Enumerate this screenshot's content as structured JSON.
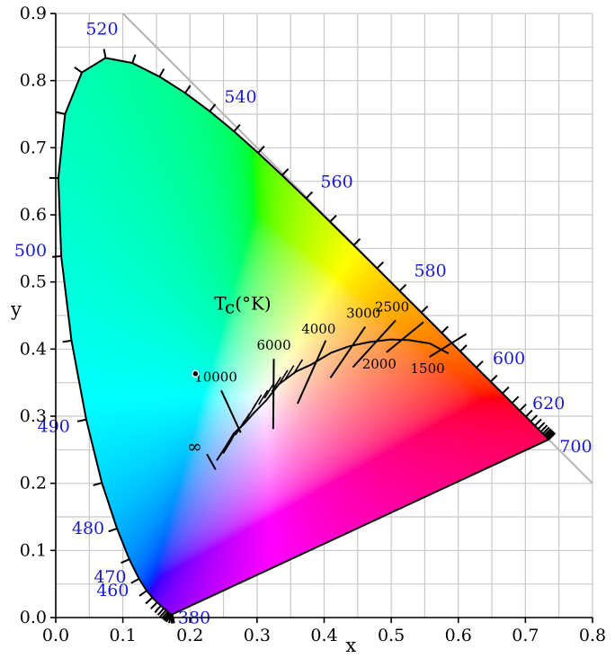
{
  "chart_data": {
    "type": "chromaticity-diagram",
    "xlabel": "x",
    "ylabel": "y",
    "xlim": [
      0.0,
      0.8
    ],
    "ylim": [
      0.0,
      0.9
    ],
    "grid": true,
    "x_ticks": [
      "0.0",
      "0.1",
      "0.2",
      "0.3",
      "0.4",
      "0.5",
      "0.6",
      "0.7",
      "0.8"
    ],
    "y_ticks": [
      "0.0",
      "0.1",
      "0.2",
      "0.3",
      "0.4",
      "0.5",
      "0.6",
      "0.7",
      "0.8",
      "0.9"
    ],
    "spectral_locus": [
      [
        0.1741,
        0.005
      ],
      [
        0.1738,
        0.0049
      ],
      [
        0.1736,
        0.0049
      ],
      [
        0.1733,
        0.0048
      ],
      [
        0.173,
        0.0048
      ],
      [
        0.1726,
        0.0048
      ],
      [
        0.1721,
        0.0048
      ],
      [
        0.1714,
        0.0051
      ],
      [
        0.1703,
        0.0058
      ],
      [
        0.1689,
        0.0069
      ],
      [
        0.1669,
        0.0086
      ],
      [
        0.1644,
        0.0109
      ],
      [
        0.1611,
        0.0138
      ],
      [
        0.1566,
        0.0177
      ],
      [
        0.151,
        0.0227
      ],
      [
        0.144,
        0.0297
      ],
      [
        0.1355,
        0.0399
      ],
      [
        0.1241,
        0.0578
      ],
      [
        0.1096,
        0.0868
      ],
      [
        0.0913,
        0.1327
      ],
      [
        0.0687,
        0.2007
      ],
      [
        0.0454,
        0.295
      ],
      [
        0.0235,
        0.4127
      ],
      [
        0.0082,
        0.5384
      ],
      [
        0.0039,
        0.6548
      ],
      [
        0.0139,
        0.7502
      ],
      [
        0.0389,
        0.812
      ],
      [
        0.0743,
        0.8338
      ],
      [
        0.1142,
        0.8262
      ],
      [
        0.1547,
        0.8059
      ],
      [
        0.1929,
        0.7816
      ],
      [
        0.2296,
        0.7543
      ],
      [
        0.2658,
        0.7243
      ],
      [
        0.3016,
        0.6923
      ],
      [
        0.3373,
        0.6589
      ],
      [
        0.3731,
        0.6245
      ],
      [
        0.4087,
        0.5896
      ],
      [
        0.4441,
        0.5547
      ],
      [
        0.4788,
        0.5202
      ],
      [
        0.5125,
        0.4866
      ],
      [
        0.5448,
        0.4544
      ],
      [
        0.5752,
        0.4242
      ],
      [
        0.6029,
        0.3965
      ],
      [
        0.627,
        0.3725
      ],
      [
        0.6482,
        0.3514
      ],
      [
        0.6658,
        0.334
      ],
      [
        0.6801,
        0.3197
      ],
      [
        0.6915,
        0.3083
      ],
      [
        0.7006,
        0.2993
      ],
      [
        0.7079,
        0.292
      ],
      [
        0.714,
        0.2859
      ],
      [
        0.719,
        0.2809
      ],
      [
        0.723,
        0.277
      ],
      [
        0.726,
        0.274
      ],
      [
        0.7283,
        0.2717
      ],
      [
        0.73,
        0.27
      ],
      [
        0.7311,
        0.2689
      ],
      [
        0.732,
        0.268
      ],
      [
        0.7327,
        0.2673
      ],
      [
        0.7334,
        0.2666
      ],
      [
        0.734,
        0.266
      ],
      [
        0.7344,
        0.2656
      ],
      [
        0.7346,
        0.2654
      ],
      [
        0.7347,
        0.2653
      ],
      [
        0.7347,
        0.2653
      ]
    ],
    "wavelength_labels": [
      {
        "nm": "380",
        "x": 0.1741,
        "y": 0.005
      },
      {
        "nm": "460",
        "x": 0.144,
        "y": 0.0297
      },
      {
        "nm": "470",
        "x": 0.1241,
        "y": 0.0578
      },
      {
        "nm": "480",
        "x": 0.0913,
        "y": 0.1327
      },
      {
        "nm": "490",
        "x": 0.0454,
        "y": 0.295
      },
      {
        "nm": "500",
        "x": 0.0082,
        "y": 0.5384
      },
      {
        "nm": "520",
        "x": 0.0743,
        "y": 0.8338
      },
      {
        "nm": "540",
        "x": 0.2296,
        "y": 0.7543
      },
      {
        "nm": "560",
        "x": 0.3731,
        "y": 0.6245
      },
      {
        "nm": "580",
        "x": 0.5125,
        "y": 0.4866
      },
      {
        "nm": "600",
        "x": 0.627,
        "y": 0.3725
      },
      {
        "nm": "620",
        "x": 0.6915,
        "y": 0.3083
      },
      {
        "nm": "700",
        "x": 0.7347,
        "y": 0.2653
      }
    ],
    "planckian_locus": [
      [
        0.2399,
        0.2341
      ],
      [
        0.2522,
        0.2529
      ],
      [
        0.2653,
        0.2743
      ],
      [
        0.2806,
        0.2883
      ],
      [
        0.2952,
        0.3048
      ],
      [
        0.3137,
        0.3236
      ],
      [
        0.3324,
        0.3475
      ],
      [
        0.3585,
        0.3667
      ],
      [
        0.3804,
        0.3768
      ],
      [
        0.4099,
        0.3943
      ],
      [
        0.4369,
        0.4041
      ],
      [
        0.4666,
        0.4103
      ],
      [
        0.499,
        0.4144
      ],
      [
        0.5269,
        0.4133
      ],
      [
        0.558,
        0.4082
      ],
      [
        0.5855,
        0.3933
      ]
    ],
    "isotherms": [
      {
        "label": "10000",
        "x1": 0.2756,
        "y1": 0.2755,
        "x2": 0.2466,
        "y2": 0.3384
      },
      {
        "label": "6000",
        "x1": 0.3241,
        "y1": 0.2809,
        "x2": 0.325,
        "y2": 0.3854
      },
      {
        "label": "4000",
        "x1": 0.3604,
        "y1": 0.3187,
        "x2": 0.4024,
        "y2": 0.4128
      },
      {
        "label": "3000",
        "x1": 0.4094,
        "y1": 0.3571,
        "x2": 0.4612,
        "y2": 0.4331
      },
      {
        "label": "2500",
        "x1": 0.4429,
        "y1": 0.373,
        "x2": 0.5066,
        "y2": 0.4428
      },
      {
        "label": "2000",
        "x1": 0.4929,
        "y1": 0.3952,
        "x2": 0.5481,
        "y2": 0.4401
      },
      {
        "label": "1500",
        "x1": 0.5569,
        "y1": 0.3882,
        "x2": 0.6119,
        "y2": 0.4225
      }
    ],
    "infinity_mark": {
      "x1": 0.2253,
      "y1": 0.2434,
      "x2": 0.2383,
      "y2": 0.2204
    },
    "locus_ticks": [
      [
        0.2562,
        0.2552
      ],
      [
        0.2658,
        0.2714
      ],
      [
        0.2748,
        0.2828
      ],
      [
        0.2822,
        0.2936
      ],
      [
        0.2921,
        0.308
      ],
      [
        0.3,
        0.3212
      ],
      [
        0.3092,
        0.3281
      ],
      [
        0.3178,
        0.3374
      ],
      [
        0.3287,
        0.3476
      ],
      [
        0.3389,
        0.3577
      ],
      [
        0.3481,
        0.3648
      ],
      [
        0.3611,
        0.3738
      ]
    ],
    "tc_label": "Tc(°K)",
    "infinity_label": "∞",
    "white_point": {
      "x": 0.2082,
      "y": 0.3632
    },
    "purple_line_ext": {
      "x1": 0.1,
      "y1": 0.9,
      "x2": 0.8,
      "y2": 0.2
    }
  }
}
